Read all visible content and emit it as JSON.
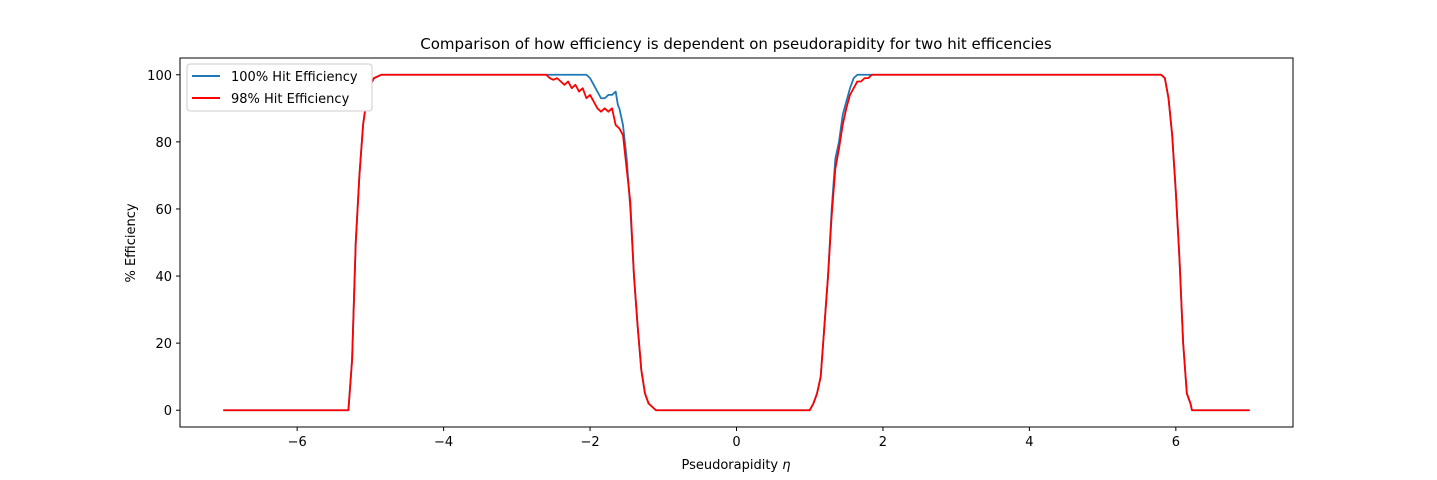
{
  "chart_data": {
    "type": "line",
    "title": "Comparison of how efficiency is dependent on pseudorapidity for two hit efficencies",
    "xlabel_text": "Pseudorapidity ",
    "xlabel_symbol": "η",
    "ylabel": "% Efficiency",
    "xlim": [
      -7.6,
      7.6
    ],
    "ylim": [
      -5,
      105
    ],
    "xticks": [
      -6,
      -4,
      -2,
      0,
      2,
      4,
      6
    ],
    "xtick_labels": [
      "−6",
      "−4",
      "−2",
      "0",
      "2",
      "4",
      "6"
    ],
    "yticks": [
      0,
      20,
      40,
      60,
      80,
      100
    ],
    "ytick_labels": [
      "0",
      "20",
      "40",
      "60",
      "80",
      "100"
    ],
    "grid": false,
    "legend_position": "upper-left",
    "series": [
      {
        "name": "100% Hit Efficiency",
        "color": "#1f77b4",
        "x": [
          -7.0,
          -5.3,
          -5.25,
          -5.2,
          -5.15,
          -5.1,
          -5.05,
          -5.0,
          -4.95,
          -4.9,
          -4.85,
          -4.8,
          -4.7,
          -4.5,
          -3.0,
          -2.6,
          -2.5,
          -2.2,
          -2.05,
          -2.0,
          -1.95,
          -1.9,
          -1.85,
          -1.8,
          -1.75,
          -1.7,
          -1.65,
          -1.62,
          -1.6,
          -1.55,
          -1.5,
          -1.45,
          -1.4,
          -1.35,
          -1.3,
          -1.25,
          -1.2,
          -1.15,
          -1.1,
          -1.05,
          -1.0,
          1.0,
          1.05,
          1.1,
          1.15,
          1.2,
          1.25,
          1.3,
          1.35,
          1.4,
          1.45,
          1.5,
          1.55,
          1.6,
          1.65,
          1.7,
          1.75,
          1.8,
          1.9,
          2.0,
          5.8,
          5.85,
          5.9,
          5.95,
          6.0,
          6.05,
          6.1,
          6.15,
          6.2,
          6.22,
          6.25,
          7.0
        ],
        "y": [
          0,
          0,
          15,
          50,
          70,
          85,
          93,
          97,
          99,
          99.5,
          100,
          100,
          100,
          100,
          100,
          100,
          100,
          100,
          100,
          99,
          97,
          95,
          93,
          93,
          94,
          94,
          95,
          91,
          90,
          85,
          75,
          60,
          40,
          25,
          12,
          5,
          2,
          1,
          0,
          0,
          0,
          0,
          2,
          5,
          10,
          25,
          40,
          60,
          75,
          80,
          88,
          92,
          96,
          99,
          100,
          100,
          100,
          100,
          100,
          100,
          100,
          99,
          93,
          82,
          65,
          45,
          20,
          5,
          2,
          0,
          0,
          0
        ]
      },
      {
        "name": "98% Hit Efficiency",
        "color": "#ff0000",
        "x": [
          -7.0,
          -5.3,
          -5.25,
          -5.2,
          -5.15,
          -5.1,
          -5.05,
          -5.0,
          -4.95,
          -4.9,
          -4.85,
          -4.8,
          -4.7,
          -4.5,
          -3.0,
          -2.6,
          -2.55,
          -2.5,
          -2.45,
          -2.4,
          -2.35,
          -2.3,
          -2.25,
          -2.2,
          -2.15,
          -2.1,
          -2.05,
          -2.0,
          -1.95,
          -1.9,
          -1.85,
          -1.8,
          -1.75,
          -1.7,
          -1.65,
          -1.6,
          -1.55,
          -1.5,
          -1.45,
          -1.4,
          -1.35,
          -1.3,
          -1.25,
          -1.2,
          -1.15,
          -1.1,
          -1.05,
          -1.0,
          1.0,
          1.05,
          1.1,
          1.15,
          1.2,
          1.25,
          1.3,
          1.35,
          1.4,
          1.45,
          1.5,
          1.55,
          1.6,
          1.65,
          1.7,
          1.75,
          1.8,
          1.85,
          1.9,
          2.0,
          5.8,
          5.85,
          5.9,
          5.95,
          6.0,
          6.05,
          6.1,
          6.15,
          6.2,
          6.22,
          6.25,
          7.0
        ],
        "y": [
          0,
          0,
          15,
          50,
          70,
          85,
          93,
          97,
          99,
          99.5,
          100,
          100,
          100,
          100,
          100,
          100,
          99,
          98.5,
          99,
          98,
          97,
          98,
          96,
          97,
          95,
          96,
          93,
          94,
          92,
          90,
          89,
          90,
          89,
          90,
          85,
          84,
          82,
          72,
          62,
          40,
          25,
          12,
          5,
          2,
          1,
          0,
          0,
          0,
          0,
          2,
          5,
          10,
          25,
          40,
          58,
          72,
          78,
          85,
          90,
          94,
          96,
          98,
          98,
          99,
          99,
          100,
          100,
          100,
          100,
          99,
          93,
          82,
          65,
          45,
          20,
          5,
          2,
          0,
          0,
          0
        ]
      }
    ]
  }
}
